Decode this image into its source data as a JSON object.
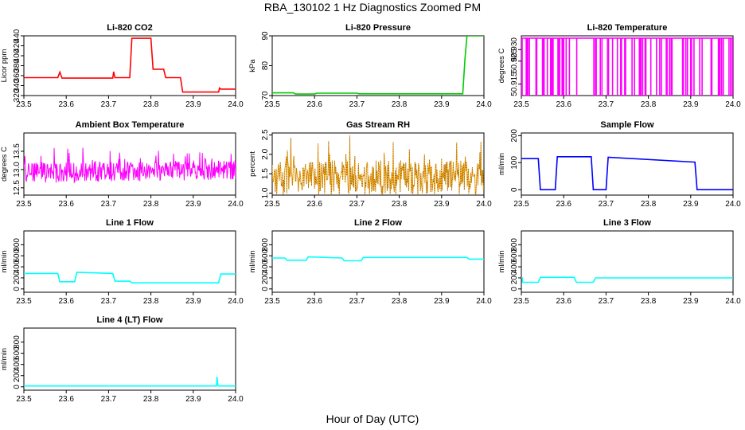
{
  "figure": {
    "title": "RBA_130102  1 Hz Diagnostics Zoomed PM",
    "xlabel": "Hour of Day (UTC)"
  },
  "chart_data": [
    {
      "type": "line",
      "title": "Li-820 CO2",
      "ylabel": "Licor ppm",
      "color": "#ff0000",
      "xlim": [
        23.5,
        24.0
      ],
      "ylim": [
        320,
        440
      ],
      "xticks": [
        "23.5",
        "23.6",
        "23.7",
        "23.8",
        "23.9",
        "24.0"
      ],
      "yticks": [
        "320",
        "340",
        "360",
        "380",
        "400",
        "420",
        "440"
      ],
      "x": [
        23.5,
        23.58,
        23.585,
        23.59,
        23.71,
        23.712,
        23.715,
        23.75,
        23.755,
        23.8,
        23.805,
        23.83,
        23.835,
        23.87,
        23.875,
        23.96,
        23.962,
        23.965,
        24.0
      ],
      "y": [
        356,
        356,
        367,
        355,
        355,
        368,
        356,
        356,
        435,
        435,
        373,
        373,
        356,
        356,
        327,
        327,
        335,
        333,
        333
      ]
    },
    {
      "type": "line",
      "title": "Li-820 Pressure",
      "ylabel": "kPa",
      "color": "#00cc00",
      "xlim": [
        23.5,
        24.0
      ],
      "ylim": [
        70,
        90
      ],
      "xticks": [
        "23.5",
        "23.6",
        "23.7",
        "23.8",
        "23.9",
        "24.0"
      ],
      "yticks": [
        "70",
        "80",
        "90"
      ],
      "x": [
        23.5,
        23.55,
        23.555,
        23.6,
        23.605,
        23.7,
        23.705,
        23.95,
        23.955,
        23.96,
        23.965,
        24.0
      ],
      "y": [
        70.9,
        70.9,
        70.5,
        70.5,
        70.8,
        70.8,
        70.6,
        70.6,
        82,
        90,
        90,
        90
      ]
    },
    {
      "type": "line",
      "title": "Li-820 Temperature",
      "ylabel": "degrees C",
      "color": "#ff00ff",
      "xlim": [
        23.5,
        24.0
      ],
      "ylim": [
        50.91,
        50.936
      ],
      "xticks": [
        "23.5",
        "23.6",
        "23.7",
        "23.8",
        "23.9",
        "24.0"
      ],
      "yticks": [
        "50.915",
        "50.925",
        "50.930"
      ],
      "x": [
        23.5,
        24.0
      ],
      "y": [
        50.935,
        50.935
      ],
      "dips_to": 50.91
    },
    {
      "type": "line",
      "title": "Ambient Box Temperature",
      "ylabel": "degrees C",
      "color": "#ff00ff",
      "xlim": [
        23.5,
        24.0
      ],
      "ylim": [
        12.3,
        14.0
      ],
      "xticks": [
        "23.5",
        "23.6",
        "23.7",
        "23.8",
        "23.9",
        "24.0"
      ],
      "yticks": [
        "12.5",
        "13.0",
        "13.5"
      ],
      "x": [
        23.5,
        24.0
      ],
      "y": [
        12.9,
        13.0
      ],
      "noise": 0.55
    },
    {
      "type": "line",
      "title": "Gas Stream RH",
      "ylabel": "percent",
      "color": "#ffa500",
      "dotted_overlay": "#555555",
      "xlim": [
        23.5,
        24.0
      ],
      "ylim": [
        0.95,
        2.55
      ],
      "xticks": [
        "23.5",
        "23.6",
        "23.7",
        "23.8",
        "23.9",
        "24.0"
      ],
      "yticks": [
        "1.0",
        "1.5",
        "2.0",
        "2.5"
      ],
      "x": [
        23.5,
        24.0
      ],
      "y": [
        1.4,
        1.4
      ],
      "noise": 0.9
    },
    {
      "type": "line",
      "title": "Sample Flow",
      "ylabel": "ml/min",
      "color": "#0000ff",
      "xlim": [
        23.5,
        24.0
      ],
      "ylim": [
        -20,
        210
      ],
      "xticks": [
        "23.5",
        "23.6",
        "23.7",
        "23.8",
        "23.9",
        "24.0"
      ],
      "yticks": [
        "0",
        "100",
        "200"
      ],
      "x": [
        23.5,
        23.54,
        23.545,
        23.58,
        23.585,
        23.665,
        23.67,
        23.7,
        23.705,
        23.91,
        23.915,
        24.0
      ],
      "y": [
        115,
        115,
        0,
        0,
        122,
        122,
        0,
        0,
        120,
        102,
        0,
        0
      ]
    },
    {
      "type": "line",
      "title": "Line 1 Flow",
      "ylabel": "ml/min",
      "color": "#00ffff",
      "xlim": [
        23.5,
        24.0
      ],
      "ylim": [
        -60,
        1050
      ],
      "xticks": [
        "23.5",
        "23.6",
        "23.7",
        "23.8",
        "23.9",
        "24.0"
      ],
      "yticks": [
        "0",
        "200",
        "400",
        "600",
        "800"
      ],
      "x": [
        23.5,
        23.58,
        23.585,
        23.62,
        23.625,
        23.71,
        23.715,
        23.75,
        23.755,
        23.96,
        23.965,
        24.0
      ],
      "y": [
        280,
        280,
        130,
        130,
        300,
        280,
        140,
        140,
        110,
        110,
        270,
        270
      ]
    },
    {
      "type": "line",
      "title": "Line 2 Flow",
      "ylabel": "ml/min",
      "color": "#00ffff",
      "xlim": [
        23.5,
        24.0
      ],
      "ylim": [
        -60,
        1050
      ],
      "xticks": [
        "23.5",
        "23.6",
        "23.7",
        "23.8",
        "23.9",
        "24.0"
      ],
      "yticks": [
        "0",
        "200",
        "400",
        "600",
        "800"
      ],
      "x": [
        23.5,
        23.53,
        23.535,
        23.58,
        23.585,
        23.665,
        23.67,
        23.71,
        23.715,
        23.96,
        23.965,
        24.0
      ],
      "y": [
        560,
        560,
        520,
        520,
        580,
        560,
        510,
        510,
        570,
        570,
        540,
        540
      ]
    },
    {
      "type": "line",
      "title": "Line 3 Flow",
      "ylabel": "ml/min",
      "color": "#00ffff",
      "xlim": [
        23.5,
        24.0
      ],
      "ylim": [
        -60,
        1050
      ],
      "xticks": [
        "23.5",
        "23.6",
        "23.7",
        "23.8",
        "23.9",
        "24.0"
      ],
      "yticks": [
        "0",
        "200",
        "400",
        "600",
        "800"
      ],
      "x": [
        23.5,
        23.502,
        23.503,
        23.54,
        23.545,
        23.625,
        23.63,
        23.67,
        23.675,
        24.0
      ],
      "y": [
        200,
        200,
        120,
        120,
        210,
        210,
        120,
        120,
        200,
        200
      ]
    },
    {
      "type": "line",
      "title": "Line 4 (LT) Flow",
      "ylabel": "ml/min",
      "color": "#00ffff",
      "xlim": [
        23.5,
        24.0
      ],
      "ylim": [
        -60,
        1050
      ],
      "xticks": [
        "23.5",
        "23.6",
        "23.7",
        "23.8",
        "23.9",
        "24.0"
      ],
      "yticks": [
        "0",
        "200",
        "400",
        "600",
        "800"
      ],
      "x": [
        23.5,
        23.955,
        23.956,
        23.958,
        23.96,
        24.0
      ],
      "y": [
        15,
        15,
        180,
        30,
        15,
        15
      ]
    }
  ]
}
